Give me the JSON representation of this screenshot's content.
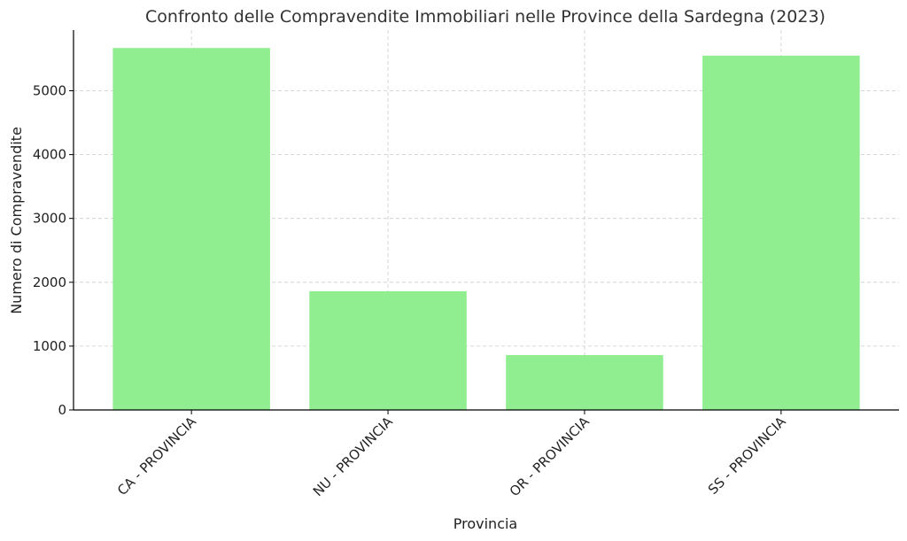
{
  "chart_data": {
    "type": "bar",
    "title": "Confronto delle Compravendite Immobiliari nelle Province della Sardegna (2023)",
    "xlabel": "Provincia",
    "ylabel": "Numero di Compravendite",
    "categories": [
      "CA - PROVINCIA",
      "NU - PROVINCIA",
      "OR - PROVINCIA",
      "SS - PROVINCIA"
    ],
    "values": [
      5670,
      1860,
      860,
      5550
    ],
    "ylim": [
      0,
      5950
    ],
    "yticks": [
      0,
      1000,
      2000,
      3000,
      4000,
      5000
    ],
    "grid": true,
    "bar_color": "#90ee90",
    "legend": "none"
  }
}
